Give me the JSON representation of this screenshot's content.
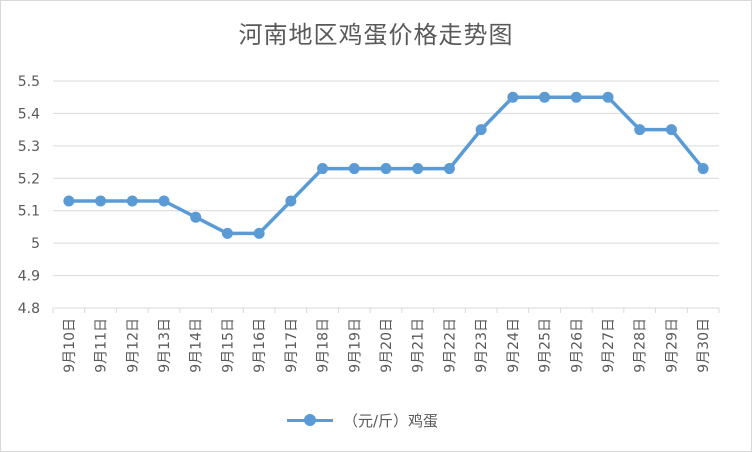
{
  "chart_data": {
    "type": "line",
    "title": "河南地区鸡蛋价格走势图",
    "xlabel": "",
    "ylabel": "",
    "categories": [
      "9月10日",
      "9月11日",
      "9月12日",
      "9月13日",
      "9月14日",
      "9月15日",
      "9月16日",
      "9月17日",
      "9月18日",
      "9月19日",
      "9月20日",
      "9月21日",
      "9月22日",
      "9月23日",
      "9月24日",
      "9月25日",
      "9月26日",
      "9月27日",
      "9月28日",
      "9月29日",
      "9月30日"
    ],
    "series": [
      {
        "name": "（元/斤）鸡蛋",
        "values": [
          5.13,
          5.13,
          5.13,
          5.13,
          5.08,
          5.03,
          5.03,
          5.13,
          5.23,
          5.23,
          5.23,
          5.23,
          5.23,
          5.35,
          5.45,
          5.45,
          5.45,
          5.45,
          5.35,
          5.35,
          5.23
        ],
        "color": "#5b9bd5"
      }
    ],
    "ylim": [
      4.8,
      5.5
    ],
    "yticks": [
      4.8,
      4.9,
      5,
      5.1,
      5.2,
      5.3,
      5.4,
      5.5
    ],
    "grid": true,
    "legend": "bottom"
  },
  "colors": {
    "series": "#5b9bd5",
    "grid": "#d9d9d9",
    "text": "#595959"
  }
}
